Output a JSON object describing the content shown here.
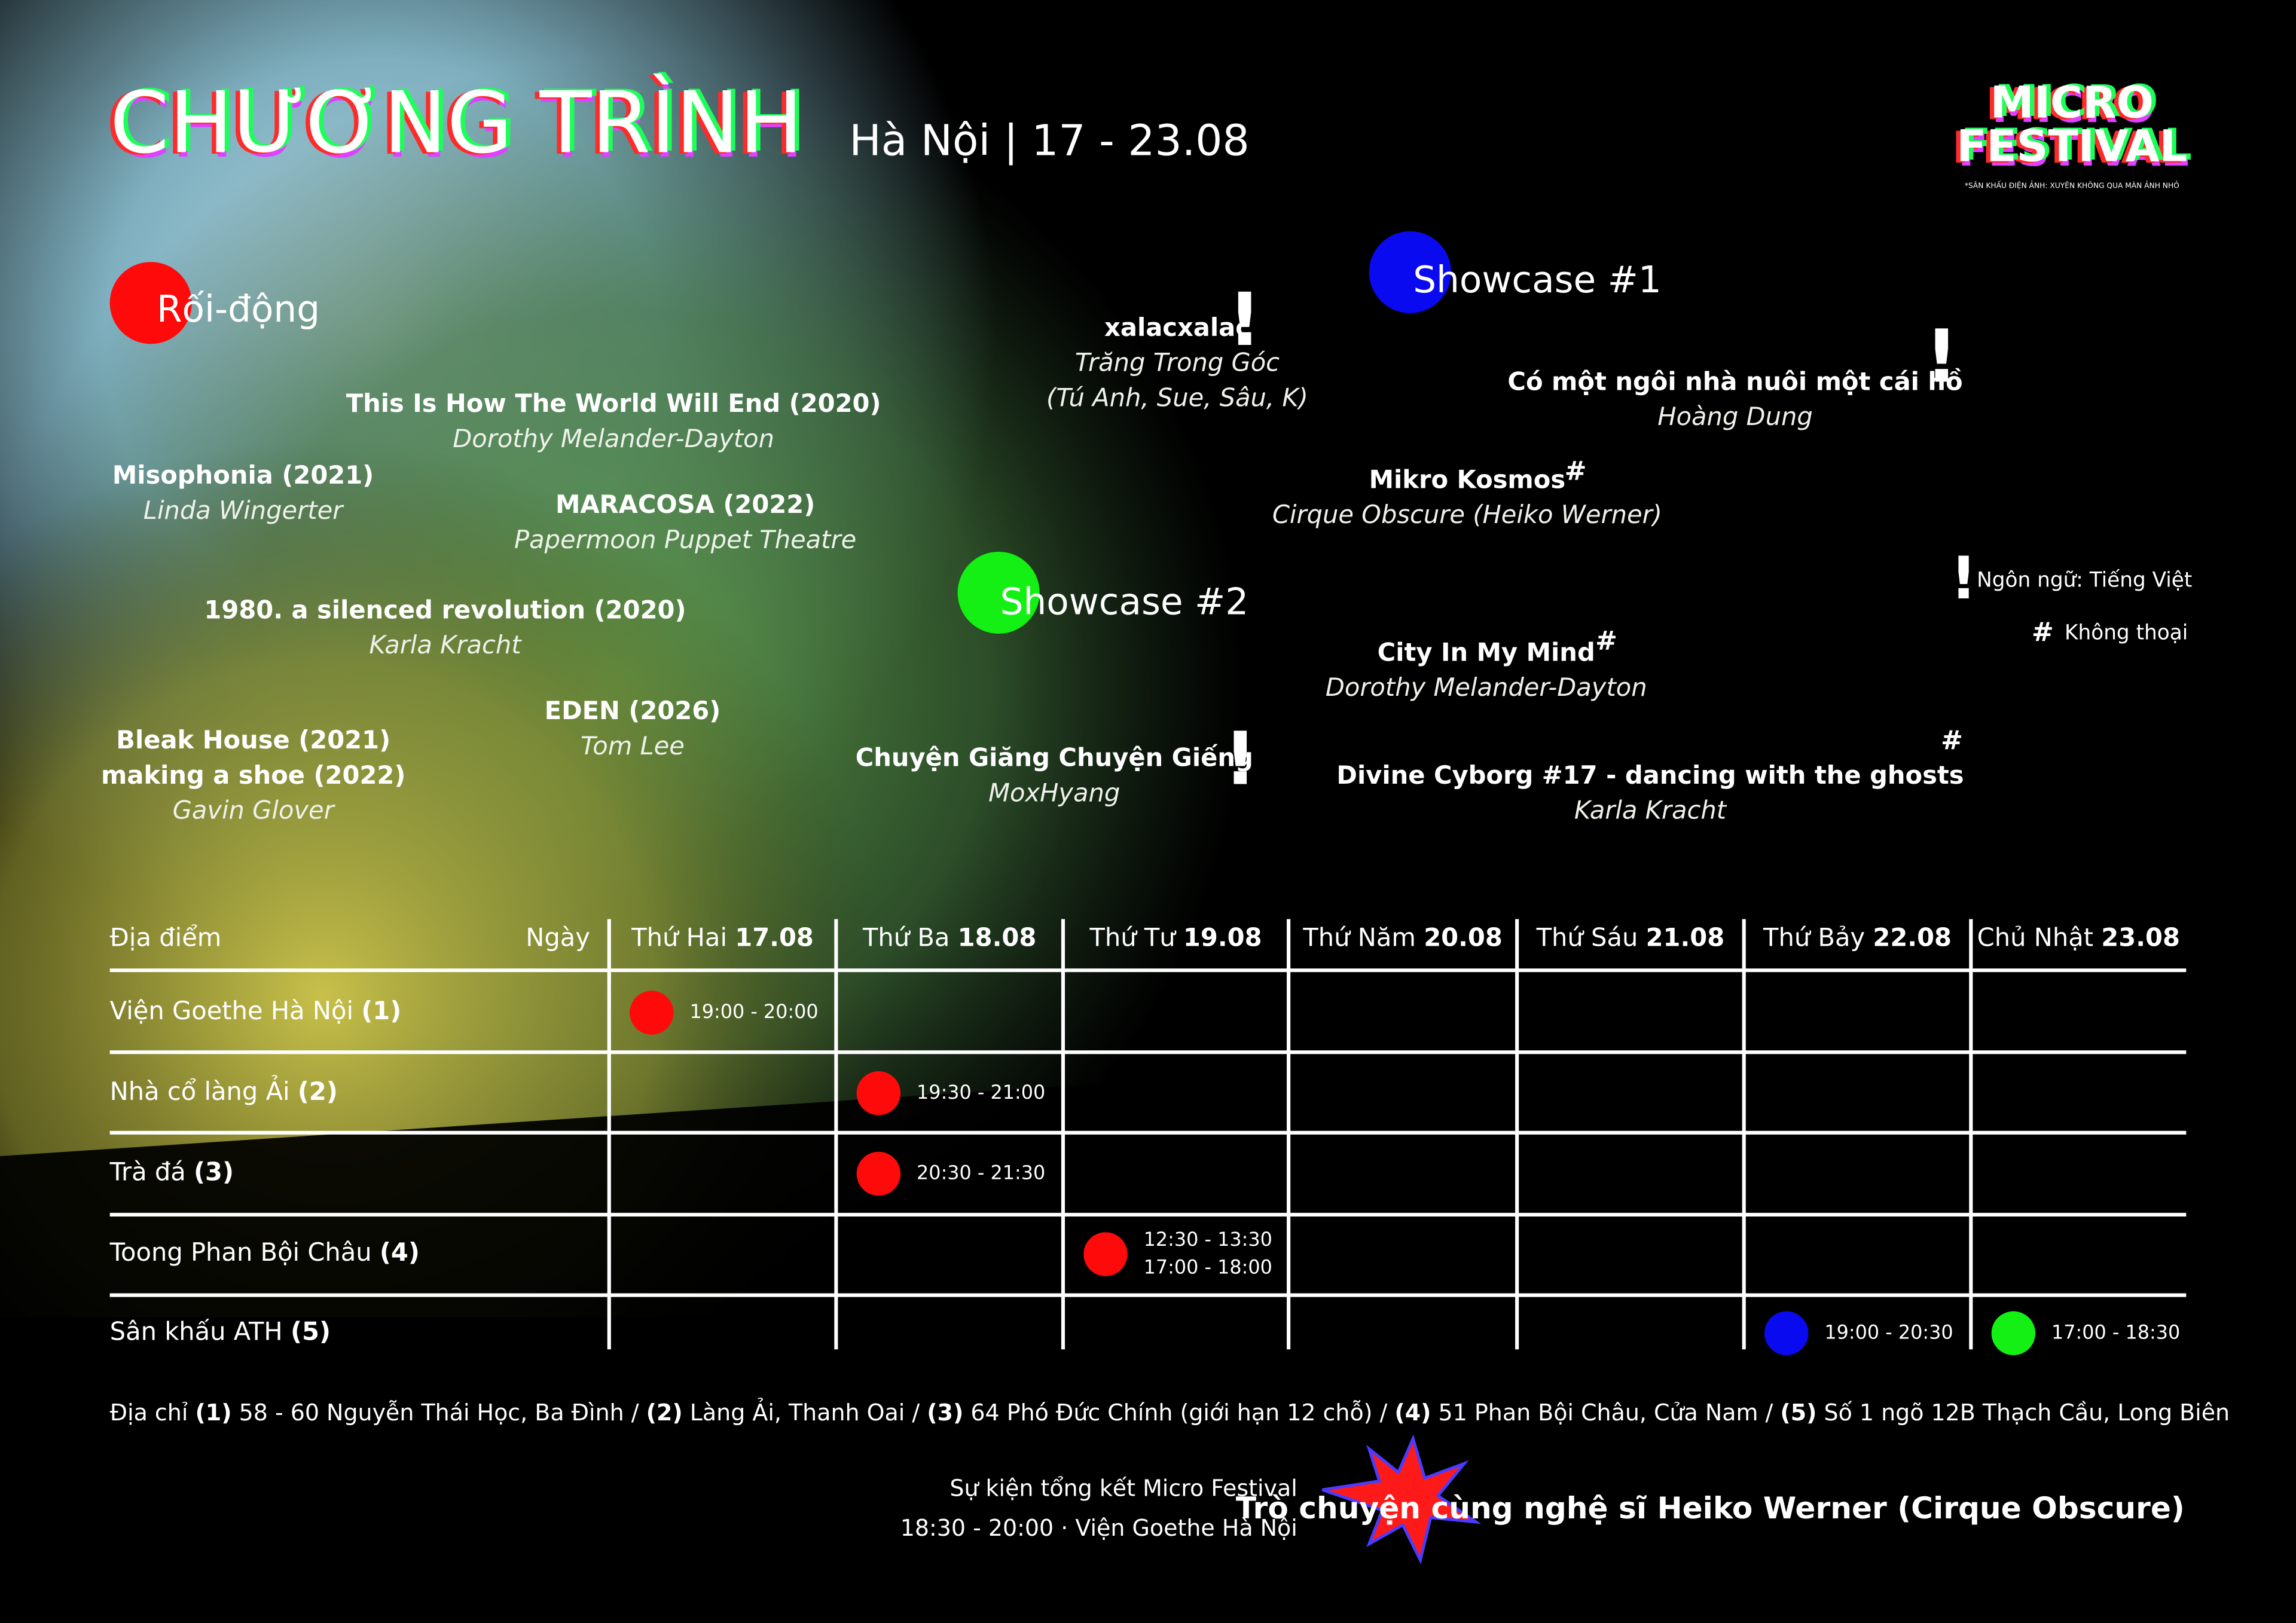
{
  "header": {
    "title": "CHƯƠNG TRÌNH",
    "subtitle": "Hà Nội | 17 - 23.08"
  },
  "logo": {
    "line1": "MICRO",
    "line2": "FESTIVAL",
    "tagline": "*SÂN KHẤU ĐIỆN ẢNH: XUYÊN KHÔNG QUA MÀN ẢNH NHỎ"
  },
  "legend": [
    {
      "mark": "!",
      "color": "#e83ce8",
      "text": "Ngôn ngữ: Tiếng Việt",
      "text_color": "#e83ce8"
    },
    {
      "mark": "#",
      "color": "#f4e81c",
      "text": "Không thoại",
      "text_color": "#ffffff"
    }
  ],
  "programs": [
    {
      "label": "Rối-động",
      "color": "#ff0a0a",
      "works": [
        {
          "titles": [
            "This Is How The World Will End (2020)"
          ],
          "artists": [
            "Dorothy Melander-Dayton"
          ]
        },
        {
          "titles": [
            "Misophonia (2021)"
          ],
          "artists": [
            "Linda Wingerter"
          ]
        },
        {
          "titles": [
            "MARACOSA (2022)"
          ],
          "artists": [
            "Papermoon Puppet Theatre"
          ]
        },
        {
          "titles": [
            "1980. a silenced revolution (2020)"
          ],
          "artists": [
            "Karla Kracht"
          ]
        },
        {
          "titles": [
            "EDEN (2026)"
          ],
          "artists": [
            "Tom Lee"
          ]
        },
        {
          "titles": [
            "Bleak House (2021)",
            "making a shoe (2022)"
          ],
          "artists": [
            "Gavin Glover"
          ]
        }
      ]
    },
    {
      "label": "Showcase #1",
      "color": "#0a0af0",
      "works": [
        {
          "titles": [
            "xalacxalac"
          ],
          "artists": [
            "Trăng Trong Góc",
            "(Tú Anh, Sue, Sâu, K)"
          ],
          "mark": "!"
        },
        {
          "titles": [
            "Có một ngôi nhà nuôi một cái hồ"
          ],
          "artists": [
            "Hoàng Dung"
          ],
          "mark": "!"
        },
        {
          "titles": [
            "Mikro Kosmos"
          ],
          "artists": [
            "Cirque Obscure (Heiko Werner)"
          ],
          "mark": "#"
        }
      ]
    },
    {
      "label": "Showcase #2",
      "color": "#14f014",
      "works": [
        {
          "titles": [
            "City In My Mind"
          ],
          "artists": [
            "Dorothy Melander-Dayton"
          ],
          "mark": "#"
        },
        {
          "titles": [
            "Chuyện Giăng Chuyện Giếng"
          ],
          "artists": [
            "MoxHyang"
          ],
          "mark": "!"
        },
        {
          "titles": [
            "Divine Cyborg #17 - dancing with the ghosts"
          ],
          "artists": [
            "Karla Kracht"
          ],
          "mark": "#"
        }
      ]
    }
  ],
  "schedule": {
    "venue_header": "Địa điểm",
    "day_header": "Ngày",
    "days": [
      {
        "name": "Thứ Hai",
        "date": "17.08"
      },
      {
        "name": "Thứ Ba",
        "date": "18.08"
      },
      {
        "name": "Thứ Tư",
        "date": "19.08"
      },
      {
        "name": "Thứ Năm",
        "date": "20.08"
      },
      {
        "name": "Thứ Sáu",
        "date": "21.08"
      },
      {
        "name": "Thứ Bảy",
        "date": "22.08"
      },
      {
        "name": "Chủ Nhật",
        "date": "23.08"
      }
    ],
    "rows": [
      {
        "venue": "Viện Goethe Hà Nội",
        "num": "(1)",
        "events": [
          {
            "day": 0,
            "color": "#ff0a0a",
            "times": [
              "19:00 - 20:00"
            ]
          }
        ]
      },
      {
        "venue": "Nhà cổ làng Ải",
        "num": "(2)",
        "events": [
          {
            "day": 1,
            "color": "#ff0a0a",
            "times": [
              "19:30 - 21:00"
            ]
          }
        ]
      },
      {
        "venue": "Trà đá",
        "num": "(3)",
        "events": [
          {
            "day": 1,
            "color": "#ff0a0a",
            "times": [
              "20:30 - 21:30"
            ]
          }
        ]
      },
      {
        "venue": "Toong Phan Bội Châu",
        "num": "(4)",
        "events": [
          {
            "day": 2,
            "color": "#ff0a0a",
            "times": [
              "12:30 - 13:30",
              "17:00 - 18:00"
            ]
          }
        ]
      },
      {
        "venue": "Sân khấu ATH",
        "num": "(5)",
        "events": [
          {
            "day": 5,
            "color": "#0a0af0",
            "times": [
              "19:00 - 20:30"
            ]
          },
          {
            "day": 6,
            "color": "#14f014",
            "times": [
              "17:00 - 18:30"
            ]
          }
        ]
      }
    ]
  },
  "addresses": {
    "label": "Địa chỉ",
    "separator": "/",
    "items": [
      {
        "num": "(1)",
        "text": "58 - 60 Nguyễn Thái Học, Ba Đình"
      },
      {
        "num": "(2)",
        "text": "Làng Ải, Thanh Oai"
      },
      {
        "num": "(3)",
        "text": "64 Phó Đức Chính (giới hạn 12 chỗ)"
      },
      {
        "num": "(4)",
        "text": "51 Phan Bội Châu, Cửa Nam"
      },
      {
        "num": "(5)",
        "text": "Số 1 ngõ 12B Thạch Cầu, Long Biên"
      }
    ]
  },
  "footer": {
    "event": "Sự kiện tổng kết Micro Festival",
    "time": "18:30 - 20:00  ·  Viện Goethe Hà Nội",
    "talk": "Trò chuyện cùng nghệ sĩ Heiko Werner (Cirque Obscure)"
  }
}
